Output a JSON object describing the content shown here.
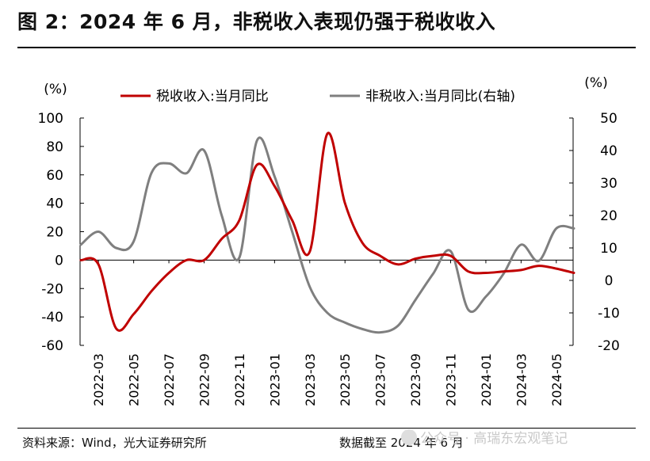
{
  "title": "图 2：2024 年 6 月，非税收入表现仍强于税收收入",
  "footer": {
    "source": "资料来源：Wind，光大证券研究所",
    "cutoff": "数据截至 2024 年 6 月"
  },
  "watermark": "公众号 · 高瑞东宏观笔记",
  "colors": {
    "tax": "#c00000",
    "nontax": "#7f7f7f"
  },
  "chart_data": {
    "type": "line",
    "title": "",
    "left_axis": {
      "unit": "(%)",
      "ylim": [
        -60,
        100
      ],
      "ticks": [
        100,
        80,
        60,
        40,
        20,
        0,
        -20,
        -40,
        -60
      ]
    },
    "right_axis": {
      "unit": "(%)",
      "ylim": [
        -20,
        50
      ],
      "ticks": [
        50,
        40,
        30,
        20,
        10,
        0,
        -10,
        -20
      ]
    },
    "x_tick_labels": [
      "2022-03",
      "2022-05",
      "2022-07",
      "2022-09",
      "2022-11",
      "2023-01",
      "2023-03",
      "2023-05",
      "2023-07",
      "2023-09",
      "2023-11",
      "2024-01",
      "2024-03",
      "2024-05"
    ],
    "legend": {
      "position": "top"
    },
    "series": [
      {
        "name": "税收收入:当月同比",
        "axis": "left",
        "color": "#c00000",
        "x": [
          "2022-02",
          "2022-03",
          "2022-04",
          "2022-05",
          "2022-06",
          "2022-07",
          "2022-08",
          "2022-09",
          "2022-10",
          "2022-11",
          "2022-12",
          "2023-01",
          "2023-02",
          "2023-03",
          "2023-04",
          "2023-05",
          "2023-06",
          "2023-07",
          "2023-08",
          "2023-09",
          "2023-10",
          "2023-11",
          "2023-12",
          "2024-01",
          "2024-02",
          "2024-03",
          "2024-04",
          "2024-05",
          "2024-06"
        ],
        "values": [
          0,
          -3,
          -48,
          -38,
          -22,
          -9,
          0,
          0,
          15,
          28,
          67,
          52,
          28,
          6,
          89,
          40,
          12,
          3,
          -3,
          1,
          3,
          3,
          -8,
          -9,
          -8,
          -7,
          -4,
          -6,
          -9
        ]
      },
      {
        "name": "非税收入:当月同比(右轴)",
        "axis": "right",
        "color": "#7f7f7f",
        "x": [
          "2022-02",
          "2022-03",
          "2022-04",
          "2022-05",
          "2022-06",
          "2022-07",
          "2022-08",
          "2022-09",
          "2022-10",
          "2022-11",
          "2022-12",
          "2023-01",
          "2023-02",
          "2023-03",
          "2023-04",
          "2023-05",
          "2023-06",
          "2023-07",
          "2023-08",
          "2023-09",
          "2023-10",
          "2023-11",
          "2023-12",
          "2024-01",
          "2024-02",
          "2024-03",
          "2024-04",
          "2024-05",
          "2024-06"
        ],
        "values": [
          11,
          15,
          10,
          12,
          33,
          36,
          33,
          40,
          20,
          7,
          43,
          32,
          15,
          -2,
          -10,
          -13,
          -15,
          -16,
          -14,
          -6,
          2,
          9,
          -9,
          -5,
          2,
          11,
          6,
          16,
          16
        ]
      }
    ]
  }
}
